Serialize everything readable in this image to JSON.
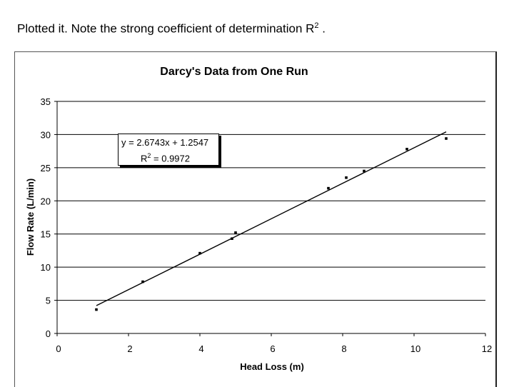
{
  "caption": {
    "text": "Plotted it. Note the strong coefficient of determination R",
    "sup": "2",
    "tail": " ."
  },
  "chart_data": {
    "type": "scatter",
    "title": "Darcy's Data from One Run",
    "xlabel": "Head Loss (m)",
    "ylabel": "Flow Rate (L/min)",
    "xlim": [
      0,
      12
    ],
    "ylim": [
      0,
      35
    ],
    "xticks": [
      0,
      2,
      4,
      6,
      8,
      10,
      12
    ],
    "yticks": [
      0,
      5,
      10,
      15,
      20,
      25,
      30,
      35
    ],
    "grid": "horizontal",
    "legend": "none",
    "points": [
      [
        1.1,
        3.6
      ],
      [
        2.4,
        7.8
      ],
      [
        4.0,
        12.1
      ],
      [
        4.9,
        14.3
      ],
      [
        5.0,
        15.2
      ],
      [
        7.6,
        21.9
      ],
      [
        8.1,
        23.5
      ],
      [
        8.6,
        24.5
      ],
      [
        9.8,
        27.8
      ],
      [
        10.9,
        29.4
      ]
    ],
    "trendline": {
      "slope": 2.6743,
      "intercept": 1.2547,
      "x_range": [
        1.1,
        10.9
      ]
    },
    "annotation": {
      "equation": "y = 2.6743x + 1.2547",
      "r2_prefix": "R",
      "r2_sup": "2",
      "r2_value": " = 0.9972"
    },
    "colors": {
      "series": "#000000",
      "grid": "#000000",
      "background": "#ffffff"
    }
  }
}
